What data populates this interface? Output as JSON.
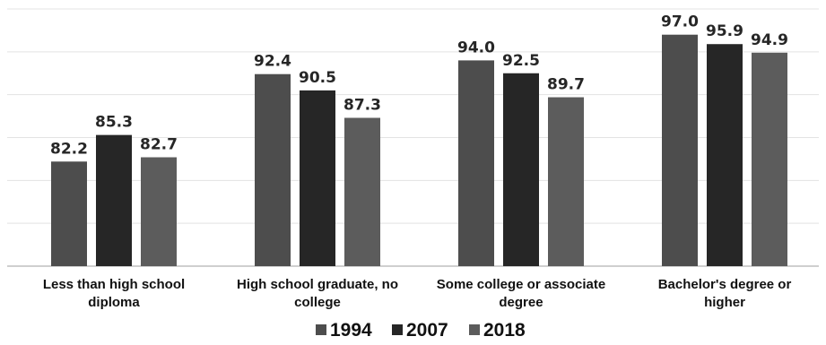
{
  "chart_data": {
    "type": "bar",
    "categories": [
      [
        "Less than high school",
        "diploma"
      ],
      [
        "High school graduate, no",
        "college"
      ],
      [
        "Some college or associate",
        "degree"
      ],
      [
        "Bachelor's degree or",
        "higher"
      ]
    ],
    "series": [
      {
        "name": "1994",
        "values": [
          82.2,
          92.4,
          94.0,
          97.0
        ],
        "color": "#4d4d4d"
      },
      {
        "name": "2007",
        "values": [
          85.3,
          90.5,
          92.5,
          95.9
        ],
        "color": "#262626"
      },
      {
        "name": "2018",
        "values": [
          82.7,
          87.3,
          89.7,
          94.9
        ],
        "color": "#5c5c5c"
      }
    ],
    "value_labels": [
      [
        "82.2",
        "92.4",
        "94.0",
        "97.0"
      ],
      [
        "85.3",
        "90.5",
        "92.5",
        "95.9"
      ],
      [
        "82.7",
        "87.3",
        "89.7",
        "94.9"
      ]
    ],
    "title": "",
    "xlabel": "",
    "ylabel": "",
    "ylim": [
      70,
      100
    ],
    "grid": true,
    "legend": "bottom-center"
  }
}
